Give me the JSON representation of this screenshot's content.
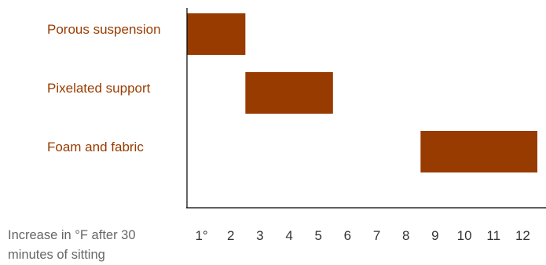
{
  "chart_data": {
    "type": "bar",
    "orientation": "horizontal-range",
    "title": "",
    "xlabel": "Increase in °F after 30 minutes of sitting",
    "xlabel_lines": [
      "Increase in °F after 30",
      "minutes of sitting"
    ],
    "ylabel": "",
    "categories": [
      "Porous suspension",
      "Pixelated support",
      "Foam and fabric"
    ],
    "ranges": [
      {
        "category": "Porous suspension",
        "start": 0.5,
        "end": 2.5
      },
      {
        "category": "Pixelated support",
        "start": 2.5,
        "end": 5.5
      },
      {
        "category": "Foam and fabric",
        "start": 8.5,
        "end": 12.5
      }
    ],
    "x_ticks": [
      "1°",
      "2",
      "3",
      "4",
      "5",
      "6",
      "7",
      "8",
      "9",
      "10",
      "11",
      "12"
    ],
    "xlim": [
      0.5,
      12.5
    ],
    "grid": false,
    "legend": "none"
  },
  "colors": {
    "bar": "#983B00",
    "category_label": "#983B00",
    "axis": "#000000"
  }
}
